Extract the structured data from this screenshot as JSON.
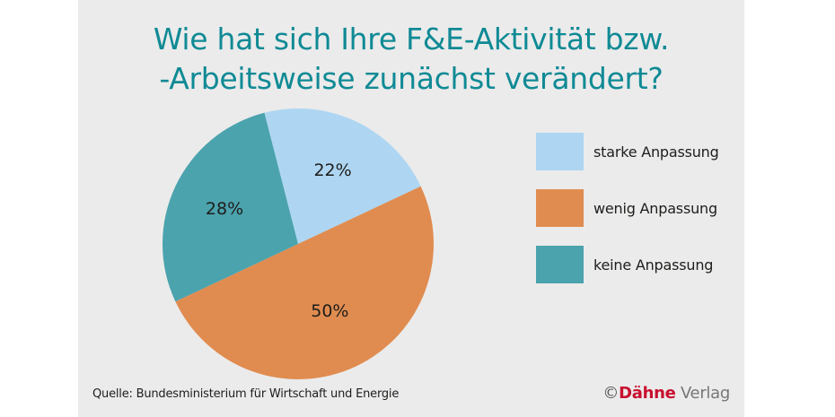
{
  "title": {
    "line1": "Wie hat sich Ihre F&E-Aktivität bzw.",
    "line2": "-Arbeitsweise zunächst verändert?"
  },
  "legend": [
    {
      "label": "starke Anpassung",
      "color": "#aed6f2"
    },
    {
      "label": "wenig Anpassung",
      "color": "#e08c50"
    },
    {
      "label": "keine Anpassung",
      "color": "#4ba3ae"
    }
  ],
  "slice_labels": [
    "22%",
    "50%",
    "28%"
  ],
  "source": "Quelle: Bundesministerium für Wirtschaft und Energie",
  "copyright": {
    "symbol": "©",
    "brand": "Dähne",
    "suffix": "Verlag"
  },
  "colors": {
    "title": "#0f8a95",
    "background_panel": "#ebebeb",
    "brand_red": "#c8102e"
  },
  "chart_data": {
    "type": "pie",
    "title": "Wie hat sich Ihre F&E-Aktivität bzw. -Arbeitsweise zunächst verändert?",
    "categories": [
      "starke Anpassung",
      "wenig Anpassung",
      "keine Anpassung"
    ],
    "values": [
      22,
      50,
      28
    ],
    "unit": "%",
    "colors": [
      "#aed6f2",
      "#e08c50",
      "#4ba3ae"
    ],
    "start_angle_deg": -14.4,
    "direction": "clockwise",
    "legend_position": "right",
    "source": "Quelle: Bundesministerium für Wirtschaft und Energie"
  }
}
